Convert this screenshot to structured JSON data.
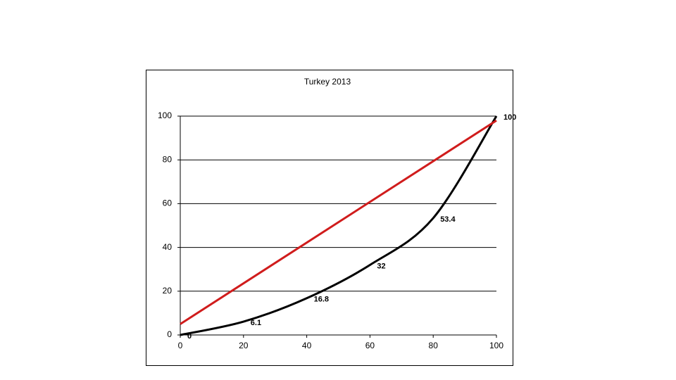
{
  "chart_data": {
    "type": "line",
    "title": "Turkey 2013",
    "x": [
      0,
      20,
      40,
      60,
      80,
      100
    ],
    "series": [
      {
        "color": "#000000",
        "values": [
          0,
          6.1,
          16.8,
          32,
          53.4,
          100
        ],
        "data_labels": true
      },
      {
        "color": "#d01c1c",
        "x": [
          0,
          100
        ],
        "values": [
          5,
          98
        ]
      }
    ],
    "xlim": [
      0,
      100
    ],
    "xticks": [
      0,
      20,
      40,
      60,
      80,
      100
    ],
    "ylim": [
      0,
      100
    ],
    "yticks": [
      0,
      20,
      40,
      60,
      80,
      100
    ],
    "grid": true
  }
}
